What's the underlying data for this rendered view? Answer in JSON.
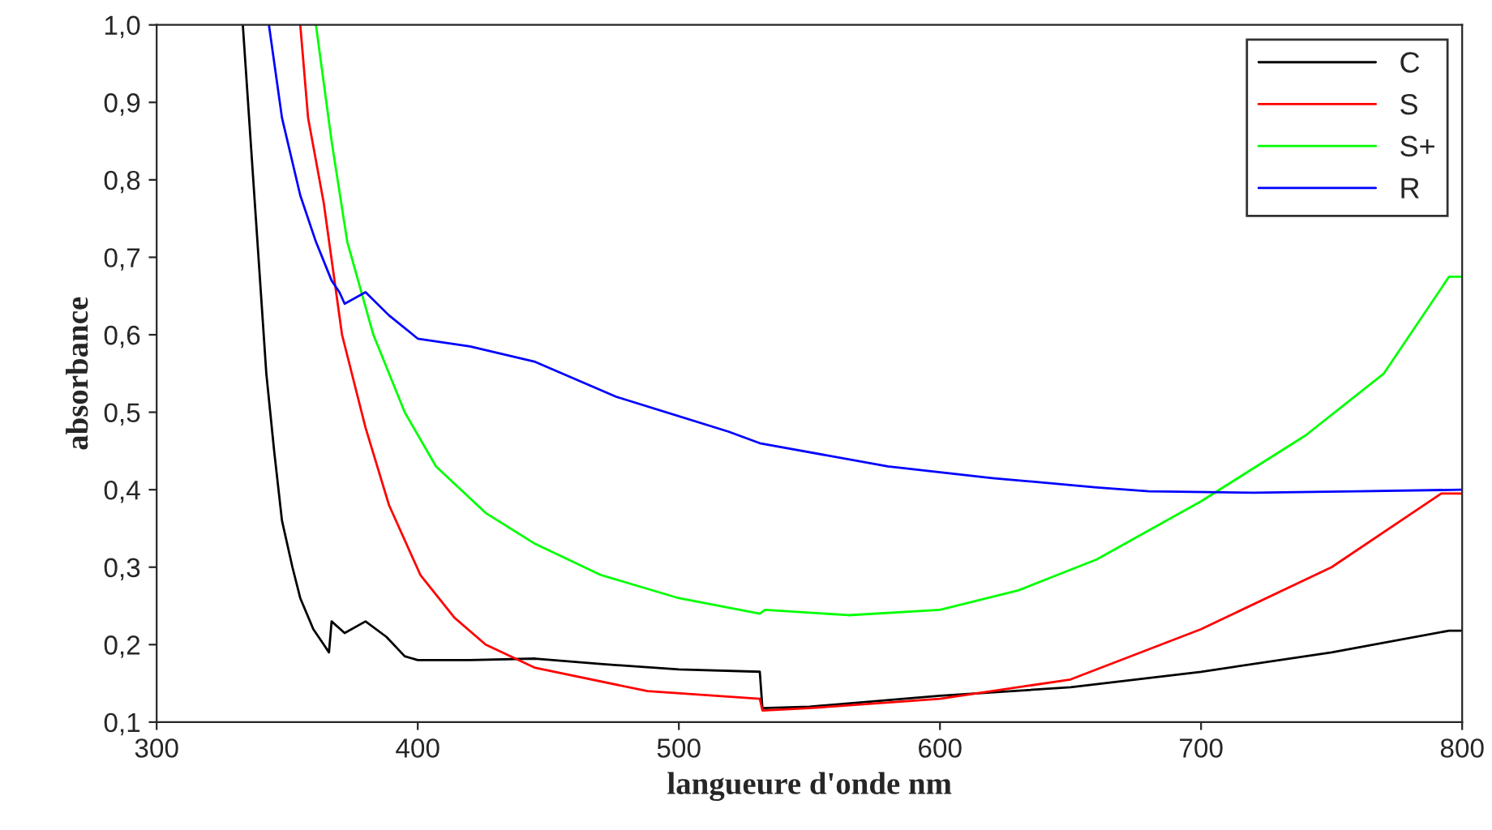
{
  "chart_data": {
    "type": "line",
    "xlabel": "langueure d'onde nm",
    "ylabel": "absorbance",
    "xlim": [
      300,
      800
    ],
    "xticks": [
      300,
      400,
      500,
      600,
      700,
      800
    ],
    "ylim": [
      0.1,
      1.0
    ],
    "yticks": [
      {
        "value": 0.1,
        "label": "0,1"
      },
      {
        "value": 0.2,
        "label": "0,2"
      },
      {
        "value": 0.3,
        "label": "0,3"
      },
      {
        "value": 0.4,
        "label": "0,4"
      },
      {
        "value": 0.5,
        "label": "0,5"
      },
      {
        "value": 0.6,
        "label": "0,6"
      },
      {
        "value": 0.7,
        "label": "0,7"
      },
      {
        "value": 0.8,
        "label": "0,8"
      },
      {
        "value": 0.9,
        "label": "0,9"
      },
      {
        "value": 1.0,
        "label": "1,0"
      }
    ],
    "grid": false,
    "legend": "top right",
    "marker": "none",
    "line_style": "solid",
    "series": [
      {
        "name": "C",
        "color": "#000000",
        "x": [
          333,
          336,
          339,
          342,
          345,
          348,
          352,
          355,
          360,
          364,
          366,
          367,
          372,
          380,
          388,
          395,
          400,
          420,
          445,
          470,
          500,
          531,
          532,
          550,
          600,
          650,
          700,
          750,
          795,
          800
        ],
        "values": [
          1.0,
          0.85,
          0.7,
          0.55,
          0.45,
          0.36,
          0.3,
          0.26,
          0.22,
          0.2,
          0.19,
          0.23,
          0.215,
          0.23,
          0.21,
          0.185,
          0.18,
          0.18,
          0.182,
          0.175,
          0.168,
          0.165,
          0.118,
          0.12,
          0.134,
          0.145,
          0.165,
          0.19,
          0.218,
          0.218
        ]
      },
      {
        "name": "S",
        "color": "#ff0000",
        "x": [
          355,
          358,
          364,
          371,
          380,
          389,
          401,
          414,
          426,
          445,
          488,
          531,
          532,
          550,
          600,
          650,
          700,
          750,
          792,
          800
        ],
        "values": [
          1.0,
          0.88,
          0.77,
          0.6,
          0.48,
          0.38,
          0.29,
          0.235,
          0.2,
          0.17,
          0.14,
          0.13,
          0.115,
          0.118,
          0.13,
          0.155,
          0.22,
          0.3,
          0.395,
          0.395
        ]
      },
      {
        "name": "S+",
        "color": "#00ff00",
        "x": [
          361,
          367,
          373,
          383,
          395,
          407,
          426,
          445,
          470,
          500,
          531,
          533,
          565,
          600,
          630,
          660,
          700,
          740,
          770,
          795,
          800
        ],
        "values": [
          1.0,
          0.85,
          0.72,
          0.6,
          0.5,
          0.43,
          0.37,
          0.33,
          0.29,
          0.26,
          0.24,
          0.245,
          0.238,
          0.245,
          0.27,
          0.31,
          0.385,
          0.47,
          0.55,
          0.675,
          0.675
        ]
      },
      {
        "name": "R",
        "color": "#0000ff",
        "x": [
          343,
          348,
          355,
          361,
          367,
          370,
          372,
          380,
          389,
          400,
          420,
          445,
          476,
          519,
          531,
          580,
          620,
          660,
          680,
          720,
          760,
          800
        ],
        "values": [
          1.0,
          0.88,
          0.78,
          0.72,
          0.67,
          0.655,
          0.64,
          0.655,
          0.625,
          0.595,
          0.585,
          0.565,
          0.52,
          0.475,
          0.46,
          0.43,
          0.415,
          0.403,
          0.398,
          0.396,
          0.398,
          0.4
        ]
      }
    ]
  }
}
